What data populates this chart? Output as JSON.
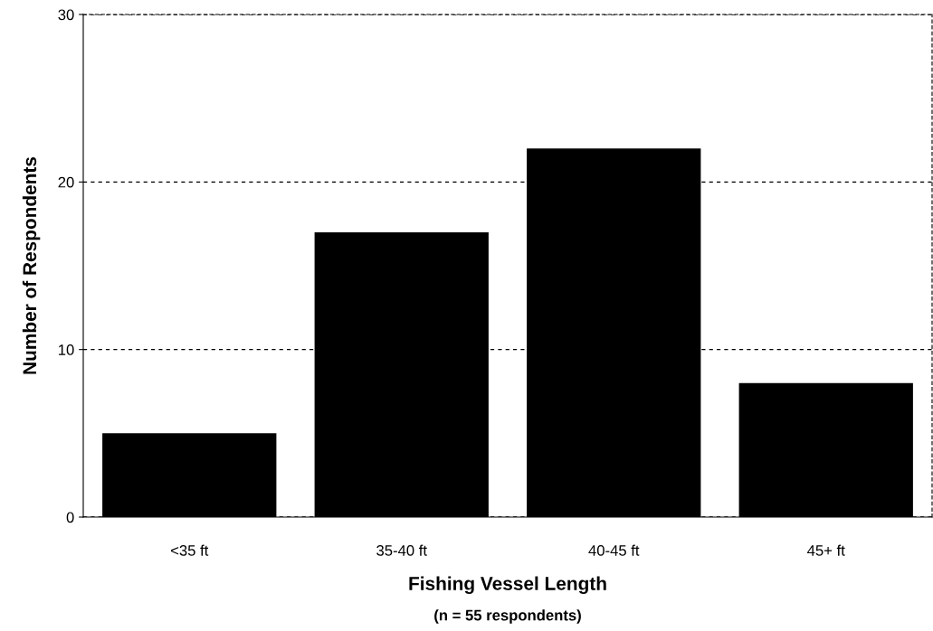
{
  "chart_data": {
    "type": "bar",
    "xlabel": "Fishing Vessel Length",
    "ylabel": "Number of Respondents",
    "categories": [
      "<35 ft",
      "35-40 ft",
      "40-45 ft",
      "45+ ft"
    ],
    "values": [
      5,
      17,
      22,
      8
    ],
    "color": "#000000",
    "ylim": [
      0,
      30
    ],
    "yticks": [
      0,
      10,
      20,
      30
    ],
    "grid": "y",
    "annotations": [
      "(n = 55 respondents)"
    ]
  }
}
